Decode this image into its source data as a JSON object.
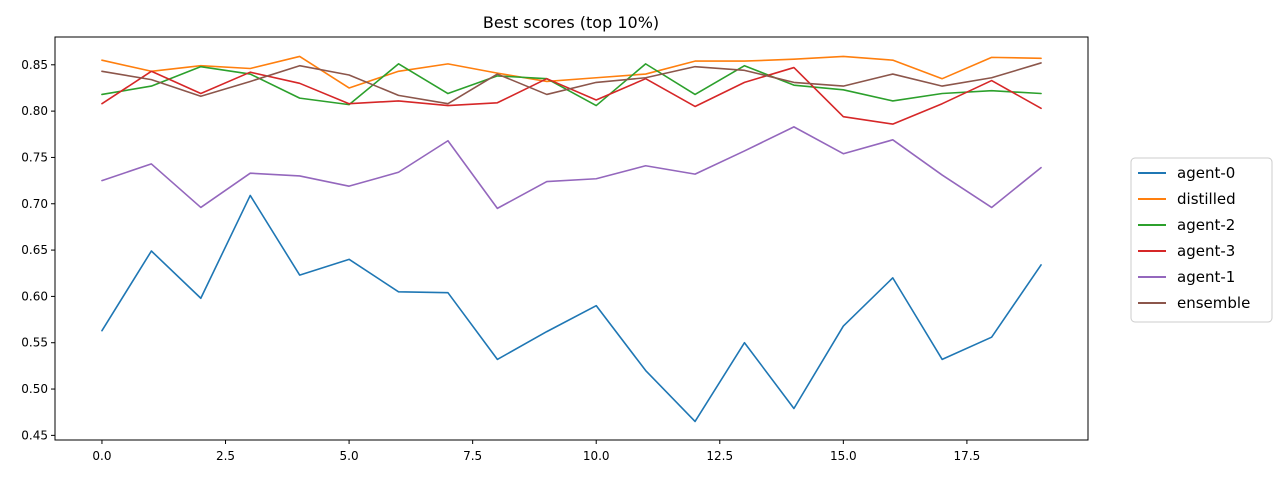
{
  "chart_data": {
    "type": "line",
    "title": "Best scores (top 10%)",
    "xlabel": "",
    "ylabel": "",
    "xlim": [
      -0.95,
      19.95
    ],
    "ylim": [
      0.445,
      0.88
    ],
    "x_ticks": [
      0.0,
      2.5,
      5.0,
      7.5,
      10.0,
      12.5,
      15.0,
      17.5
    ],
    "x_tick_labels": [
      "0.0",
      "2.5",
      "5.0",
      "7.5",
      "10.0",
      "12.5",
      "15.0",
      "17.5"
    ],
    "y_ticks": [
      0.45,
      0.5,
      0.55,
      0.6,
      0.65,
      0.7,
      0.75,
      0.8,
      0.85
    ],
    "y_tick_labels": [
      "0.45",
      "0.50",
      "0.55",
      "0.60",
      "0.65",
      "0.70",
      "0.75",
      "0.80",
      "0.85"
    ],
    "grid": false,
    "legend_position": "outside-right",
    "x": [
      0,
      1,
      2,
      3,
      4,
      5,
      6,
      7,
      8,
      9,
      10,
      11,
      12,
      13,
      14,
      15,
      16,
      17,
      18,
      19
    ],
    "series": [
      {
        "name": "agent-0",
        "color": "#1f77b4",
        "values": [
          0.563,
          0.649,
          0.598,
          0.709,
          0.623,
          0.64,
          0.605,
          0.604,
          0.532,
          0.562,
          0.59,
          0.52,
          0.465,
          0.55,
          0.479,
          0.568,
          0.62,
          0.532,
          0.556,
          0.634
        ]
      },
      {
        "name": "distilled",
        "color": "#ff7f0e",
        "values": [
          0.855,
          0.843,
          0.849,
          0.846,
          0.859,
          0.825,
          0.843,
          0.851,
          0.841,
          0.832,
          0.836,
          0.84,
          0.854,
          0.854,
          0.856,
          0.859,
          0.855,
          0.835,
          0.858,
          0.857
        ]
      },
      {
        "name": "agent-2",
        "color": "#2ca02c",
        "values": [
          0.818,
          0.827,
          0.848,
          0.84,
          0.814,
          0.807,
          0.851,
          0.819,
          0.838,
          0.835,
          0.806,
          0.851,
          0.818,
          0.849,
          0.828,
          0.823,
          0.811,
          0.819,
          0.822,
          0.819
        ]
      },
      {
        "name": "agent-3",
        "color": "#d62728",
        "values": [
          0.808,
          0.843,
          0.819,
          0.842,
          0.83,
          0.808,
          0.811,
          0.806,
          0.809,
          0.835,
          0.812,
          0.835,
          0.805,
          0.831,
          0.847,
          0.794,
          0.786,
          0.808,
          0.833,
          0.803
        ]
      },
      {
        "name": "agent-1",
        "color": "#9467bd",
        "values": [
          0.725,
          0.743,
          0.696,
          0.733,
          0.73,
          0.719,
          0.734,
          0.768,
          0.695,
          0.724,
          0.727,
          0.741,
          0.732,
          0.757,
          0.783,
          0.754,
          0.769,
          0.731,
          0.696,
          0.739
        ]
      },
      {
        "name": "ensemble",
        "color": "#8c564b",
        "values": [
          0.843,
          0.834,
          0.816,
          0.832,
          0.849,
          0.839,
          0.817,
          0.808,
          0.84,
          0.818,
          0.831,
          0.836,
          0.848,
          0.844,
          0.831,
          0.827,
          0.84,
          0.827,
          0.836,
          0.852
        ]
      }
    ]
  }
}
